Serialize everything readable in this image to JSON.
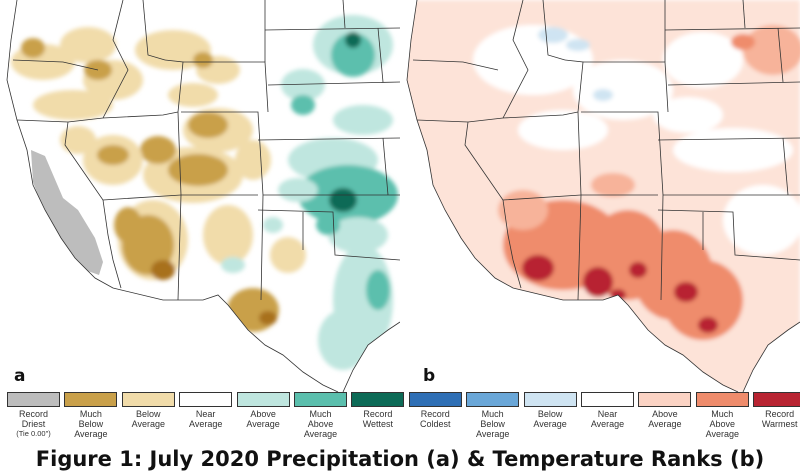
{
  "caption": "Figure 1: July 2020 Precipitation (a) & Temperature Ranks (b)",
  "panels": {
    "a": "a",
    "b": "b"
  },
  "legend_precip": [
    {
      "lines": [
        "Record",
        "Driest",
        "(Tie 0.00\")"
      ],
      "color": "#bdbdbd"
    },
    {
      "lines": [
        "Much",
        "Below",
        "Average"
      ],
      "color": "#c9a04a"
    },
    {
      "lines": [
        "Below",
        "Average"
      ],
      "color": "#f1dcaa"
    },
    {
      "lines": [
        "Near",
        "Average"
      ],
      "color": "#ffffff"
    },
    {
      "lines": [
        "Above",
        "Average"
      ],
      "color": "#bfe6df"
    },
    {
      "lines": [
        "Much",
        "Above",
        "Average"
      ],
      "color": "#5bbfad"
    },
    {
      "lines": [
        "Record",
        "Wettest"
      ],
      "color": "#0d6b57"
    }
  ],
  "legend_temp": [
    {
      "lines": [
        "Record",
        "Coldest"
      ],
      "color": "#2f6fb5"
    },
    {
      "lines": [
        "Much",
        "Below",
        "Average"
      ],
      "color": "#6aa7d8"
    },
    {
      "lines": [
        "Below",
        "Average"
      ],
      "color": "#cfe4f2"
    },
    {
      "lines": [
        "Near",
        "Average"
      ],
      "color": "#ffffff"
    },
    {
      "lines": [
        "Above",
        "Average"
      ],
      "color": "#fbd3c4"
    },
    {
      "lines": [
        "Much",
        "Above",
        "Average"
      ],
      "color": "#ef8c6c"
    },
    {
      "lines": [
        "Record",
        "Warmest"
      ],
      "color": "#b82432"
    }
  ],
  "colors": {
    "map_background": "#ffffff",
    "border": "#333333",
    "temp_base": "#fde3d8"
  }
}
